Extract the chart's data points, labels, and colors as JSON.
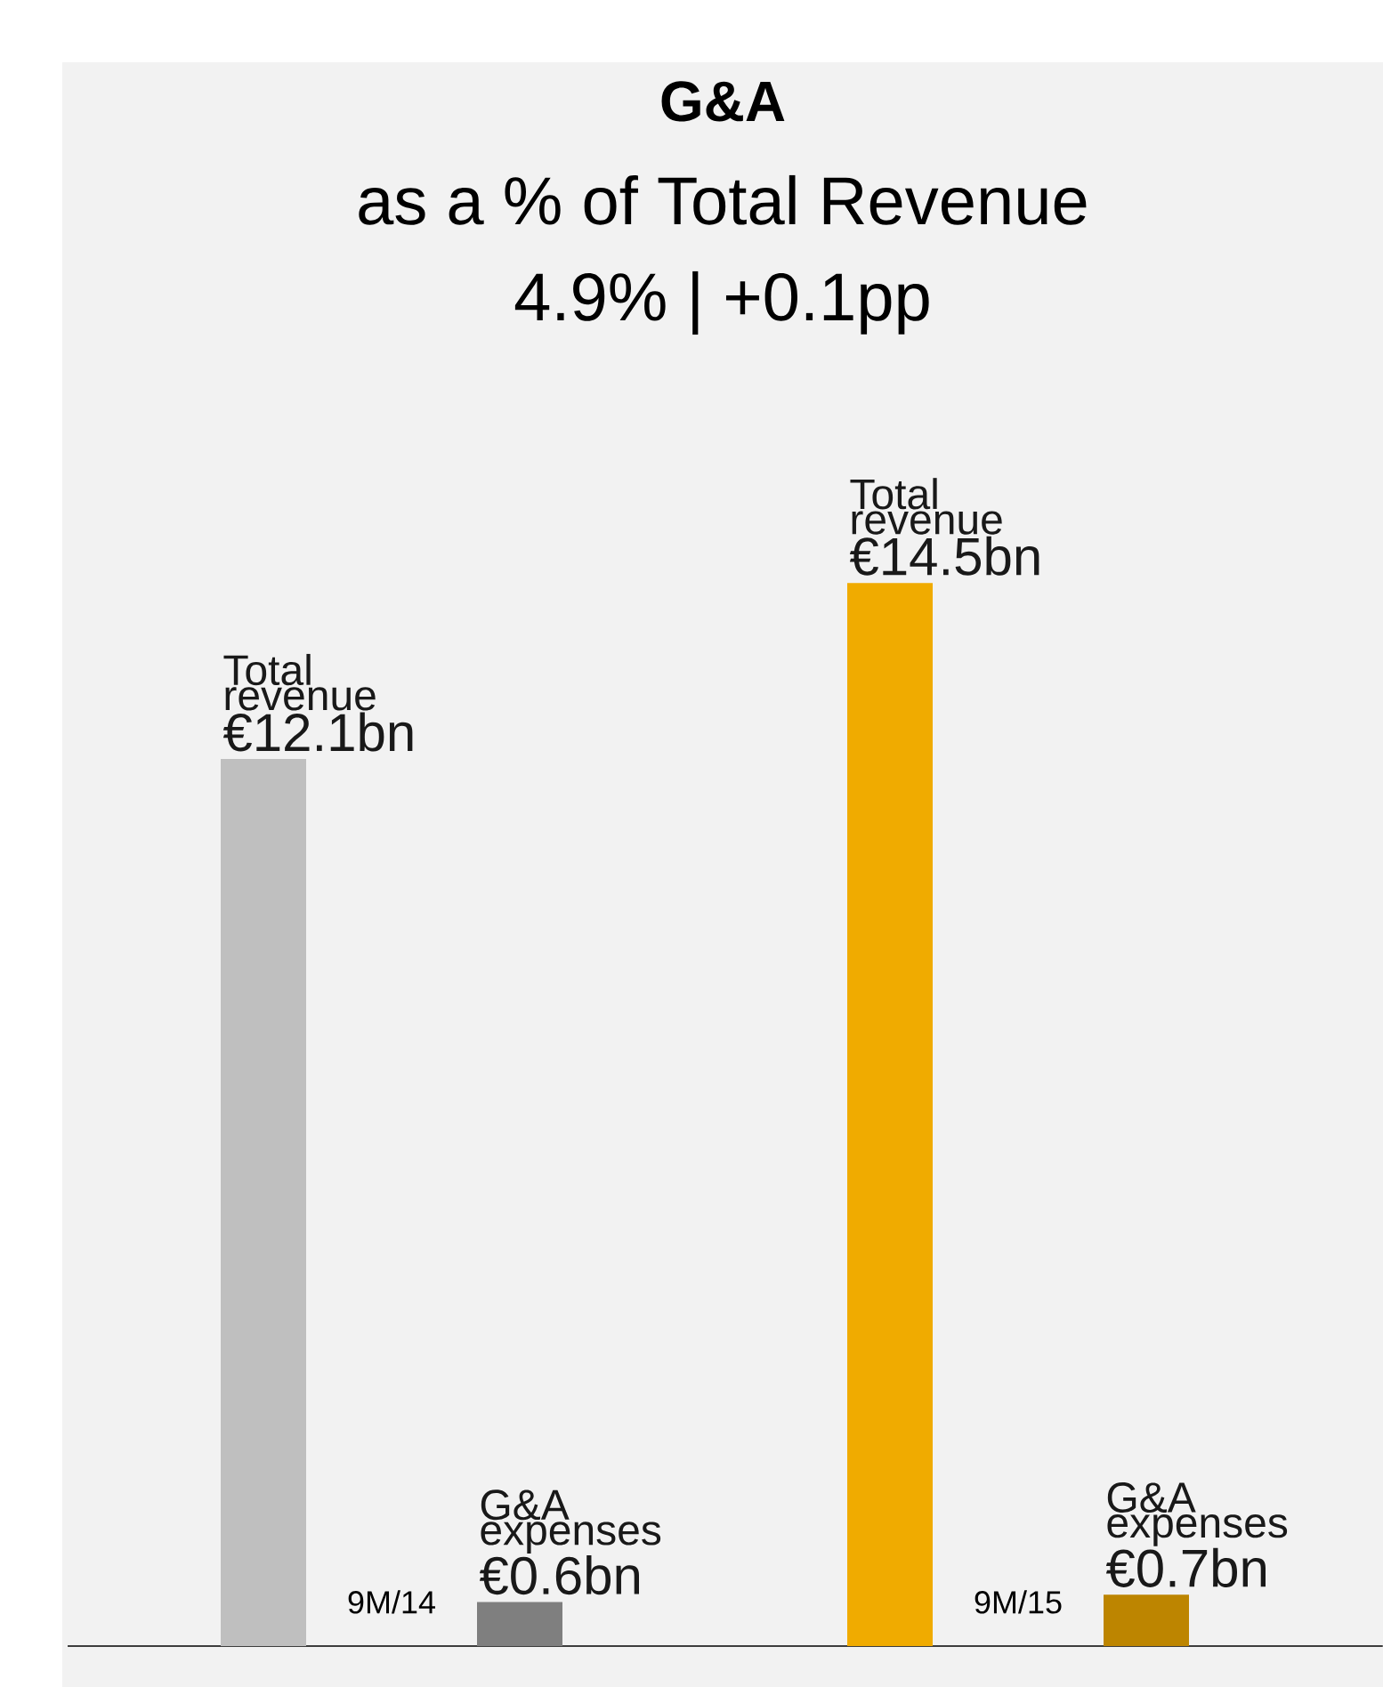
{
  "chart_data": {
    "type": "bar",
    "title": "G&A",
    "subtitle": "as a % of Total Revenue",
    "annotations": [
      "4.9% |  +0.1pp"
    ],
    "categories": [
      "9M/14",
      "9M/15"
    ],
    "series": [
      {
        "name": "Total revenue",
        "colors": [
          "#bfbfbf",
          "#f0ab00"
        ],
        "values": [
          12.1,
          14.5
        ],
        "value_labels": [
          "€12.1bn",
          "€14.5bn"
        ]
      },
      {
        "name": "G&A expenses",
        "colors": [
          "#7f7f7f",
          "#bd8500"
        ],
        "values": [
          0.6,
          0.7
        ],
        "value_labels": [
          "€0.6bn",
          "€0.7bn"
        ]
      }
    ]
  }
}
